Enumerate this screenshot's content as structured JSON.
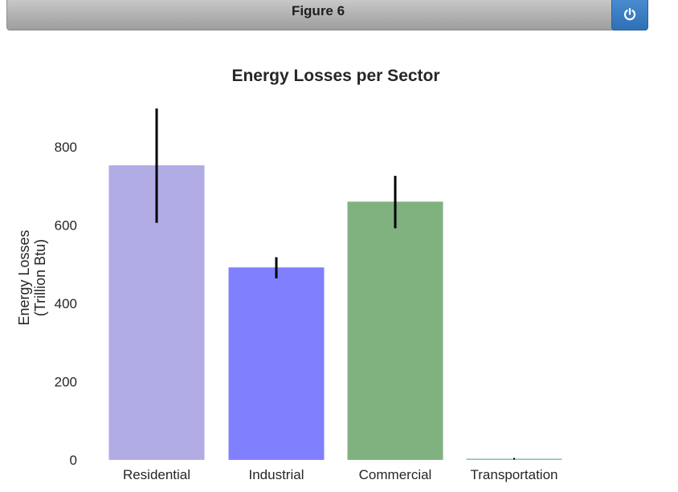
{
  "window": {
    "title": "Figure 6",
    "power_button_icon": "power-icon",
    "power_button_color": "#337ab7"
  },
  "chart_data": {
    "type": "bar",
    "title": "Energy Losses per Sector",
    "ylabel_lines": [
      "Energy Losses",
      "(Trillion Btu)"
    ],
    "xlabel": "",
    "categories": [
      "Residential",
      "Industrial",
      "Commercial",
      "Transportation"
    ],
    "values": [
      753,
      492,
      660,
      3
    ],
    "error_low": [
      606,
      464,
      592,
      3
    ],
    "error_high": [
      898,
      518,
      726,
      3
    ],
    "colors": [
      "#b2ace5",
      "#8080ff",
      "#80b27f",
      "#80c0a8"
    ],
    "ylim": [
      0,
      900
    ],
    "yticks": [
      0,
      200,
      400,
      600,
      800
    ],
    "grid": false,
    "legend": false
  }
}
